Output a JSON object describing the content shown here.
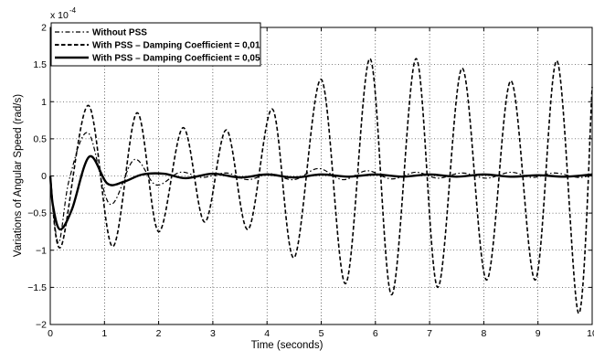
{
  "chart_data": {
    "type": "line",
    "xlabel": "Time (seconds)",
    "ylabel": "Variations of Angular Speed (rad/s)",
    "y_multiplier_label": "x 10",
    "y_multiplier_exponent": "-4",
    "xlim": [
      0,
      10
    ],
    "ylim": [
      -2,
      2
    ],
    "x_ticks": [
      0,
      1,
      2,
      3,
      4,
      5,
      6,
      7,
      8,
      9,
      10
    ],
    "x_tick_labels": [
      "0",
      "1",
      "2",
      "3",
      "4",
      "5",
      "6",
      "7",
      "8",
      "9",
      "10"
    ],
    "y_ticks": [
      -2,
      -1.5,
      -1,
      -0.5,
      0,
      0.5,
      1,
      1.5,
      2
    ],
    "y_tick_labels": [
      "−2",
      "−1.5",
      "−1",
      "−0.5",
      "0",
      "0.5",
      "1",
      "1.5",
      "2"
    ],
    "grid": true,
    "legend_position": "top-left",
    "series": [
      {
        "name": "Without PSS",
        "style": "dashdot",
        "x": [
          0,
          0.15,
          0.35,
          0.7,
          1.1,
          1.55,
          1.95,
          2.4,
          2.8,
          3.25,
          3.65,
          4.05,
          4.5,
          4.95,
          5.4,
          5.85,
          6.3,
          6.75,
          7.15,
          7.6,
          8.05,
          8.5,
          8.9,
          9.3,
          9.75,
          10
        ],
        "y": [
          0,
          -0.9,
          -0.05,
          0.58,
          -0.38,
          0.22,
          -0.12,
          0.05,
          -0.02,
          0.04,
          -0.05,
          0.03,
          -0.05,
          0.1,
          -0.05,
          0.07,
          -0.04,
          0.05,
          -0.03,
          0.04,
          -0.03,
          0.05,
          -0.02,
          0.04,
          -0.02,
          0.02
        ]
      },
      {
        "name": "With PSS – Damping Coefficient = 0,01",
        "style": "dashed",
        "x": [
          0,
          0.2,
          0.7,
          1.15,
          1.6,
          2.0,
          2.45,
          2.85,
          3.25,
          3.65,
          4.1,
          4.5,
          5.0,
          5.45,
          5.9,
          6.3,
          6.75,
          7.15,
          7.6,
          8.05,
          8.5,
          8.95,
          9.35,
          9.75,
          10
        ],
        "y": [
          0,
          -0.95,
          0.95,
          -0.95,
          0.85,
          -0.75,
          0.65,
          -0.62,
          0.62,
          -0.72,
          0.9,
          -1.1,
          1.3,
          -1.45,
          1.58,
          -1.6,
          1.58,
          -1.5,
          1.45,
          -1.4,
          1.28,
          -1.4,
          1.55,
          -1.85,
          1.2
        ]
      },
      {
        "name": "With PSS – Damping Coefficient = 0,05",
        "style": "solid",
        "x": [
          0,
          0.05,
          0.18,
          0.4,
          0.72,
          1.05,
          1.35,
          1.7,
          2.1,
          2.5,
          3.0,
          3.5,
          4.0,
          4.5,
          5.0,
          5.5,
          6.0,
          6.5,
          7.0,
          7.5,
          8.0,
          8.5,
          9.0,
          9.5,
          10
        ],
        "y": [
          0,
          -0.4,
          -0.72,
          -0.45,
          0.26,
          -0.1,
          -0.08,
          0.02,
          0.03,
          -0.03,
          0.03,
          -0.02,
          0.02,
          -0.02,
          0.02,
          -0.01,
          0.02,
          -0.01,
          0.02,
          -0.01,
          0.02,
          -0.01,
          0.01,
          -0.01,
          0.02
        ]
      }
    ]
  }
}
